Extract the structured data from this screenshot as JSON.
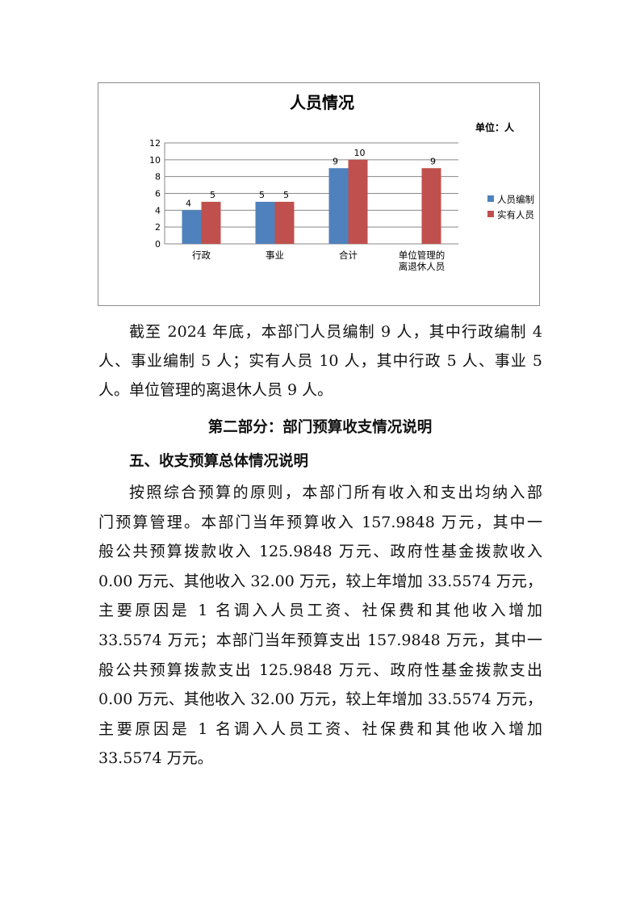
{
  "chart_data": {
    "type": "bar",
    "title": "人员情况",
    "unit_label": "单位：人",
    "categories": [
      "行政",
      "事业",
      "合计",
      "单位管理的\n离退休人员"
    ],
    "series": [
      {
        "name": "人员编制",
        "color": "#4f81bd",
        "values": [
          4,
          5,
          9,
          null
        ]
      },
      {
        "name": "实有人员",
        "color": "#c0504d",
        "values": [
          5,
          5,
          10,
          9
        ]
      }
    ],
    "ylim": [
      0,
      12
    ],
    "yticks": [
      0,
      2,
      4,
      6,
      8,
      10,
      12
    ],
    "grid": true,
    "legend": "right"
  },
  "para1": {
    "lines": [
      "截至 2024 年底，本部门人员编制 9 人，其中行政编制 4",
      "人、事业编制 5 人；实有人员 10 人，其中行政 5 人、事业 5",
      "人。单位管理的离退休人员 9 人。"
    ]
  },
  "section_heading": "第二部分：部门预算收支情况说明",
  "subsection_heading": "五、收支预算总体情况说明",
  "para2": {
    "lines": [
      "按照综合预算的原则，本部门所有收入和支出均纳入部",
      "门预算管理。本部门当年预算收入 157.9848 万元，其中一",
      "般公共预算拨款收入 125.9848 万元、政府性基金拨款收入",
      "0.00 万元、其他收入 32.00 万元，较上年增加 33.5574 万元，",
      "主要原因是 1 名调入人员工资、社保费和其他收入增加",
      "33.5574 万元；本部门当年预算支出 157.9848 万元，其中一",
      "般公共预算拨款支出 125.9848 万元、政府性基金拨款支出",
      "0.00 万元、其他收入 32.00 万元，较上年增加 33.5574 万元，",
      "主要原因是 1 名调入人员工资、社保费和其他收入增加",
      "33.5574 万元。"
    ]
  }
}
